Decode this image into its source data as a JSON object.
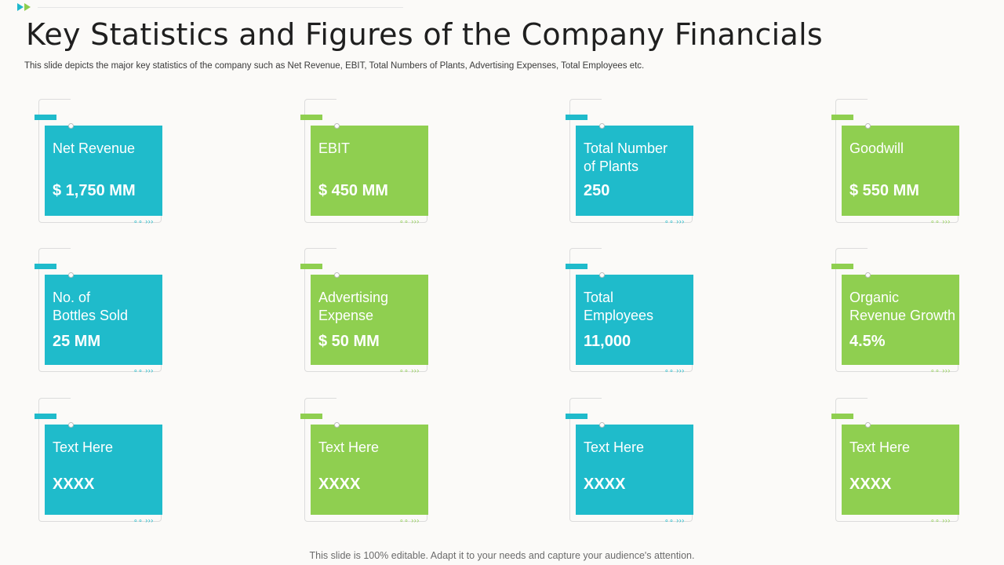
{
  "header": {
    "title": "Key Statistics and Figures of the Company Financials",
    "subtitle": "This slide depicts the major key statistics of the company such as Net Revenue, EBIT, Total Numbers of Plants, Advertising Expenses, Total Employees etc."
  },
  "footer": {
    "text": "This slide is 100% editable. Adapt it to your needs and capture your audience's attention."
  },
  "colors": {
    "teal": "#1fbbcb",
    "green": "#8fcf50"
  },
  "cards": [
    {
      "label": "Net Revenue",
      "value": "$ 1,750 MM",
      "color": "teal"
    },
    {
      "label": "EBIT",
      "value": "$ 450 MM",
      "color": "green"
    },
    {
      "label": "Total Number\nof Plants",
      "value": "250",
      "color": "teal"
    },
    {
      "label": "Goodwill",
      "value": "$ 550 MM",
      "color": "green"
    },
    {
      "label": "No. of\nBottles Sold",
      "value": "25 MM",
      "color": "teal"
    },
    {
      "label": "Advertising\nExpense",
      "value": "$ 50 MM",
      "color": "green"
    },
    {
      "label": "Total\nEmployees",
      "value": "11,000",
      "color": "teal"
    },
    {
      "label": "Organic\nRevenue Growth",
      "value": "4.5%",
      "color": "green"
    },
    {
      "label": "Text Here",
      "value": "XXXX",
      "color": "teal"
    },
    {
      "label": "Text Here",
      "value": "XXXX",
      "color": "green"
    },
    {
      "label": "Text Here",
      "value": "XXXX",
      "color": "teal"
    },
    {
      "label": "Text Here",
      "value": "XXXX",
      "color": "green"
    }
  ]
}
